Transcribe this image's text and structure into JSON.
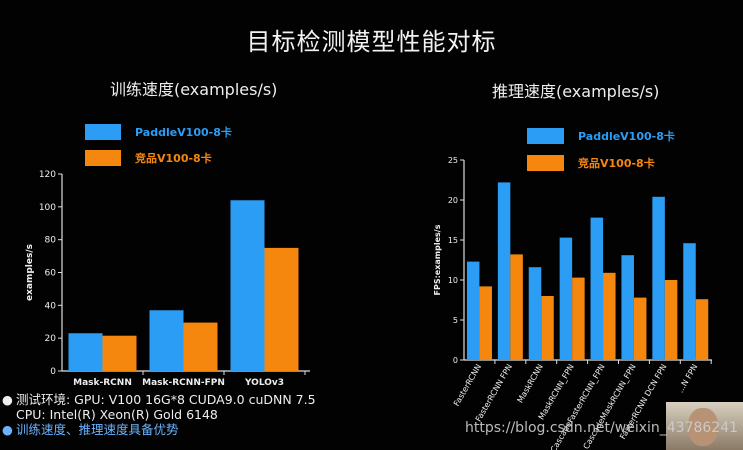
{
  "page_title": "目标检测模型性能对标",
  "chart_data": [
    {
      "type": "bar",
      "title": "训练速度(examples/s)",
      "ylabel": "examples/s",
      "xlabel": "",
      "ylim": [
        0,
        120
      ],
      "yticks": [
        0,
        20,
        40,
        60,
        80,
        100,
        120
      ],
      "categories": [
        "Mask-RCNN",
        "Mask-RCNN-FPN",
        "YOLOv3"
      ],
      "series": [
        {
          "name": "PaddleV100-8卡",
          "color": "#2b9df4",
          "values": [
            23,
            37,
            104
          ]
        },
        {
          "name": "竞品V100-8卡",
          "color": "#f5870f",
          "values": [
            21.5,
            29.5,
            75
          ]
        }
      ],
      "legend": "top-left"
    },
    {
      "type": "bar",
      "title": "推理速度(examples/s)",
      "ylabel": "FPS:examples/s",
      "xlabel": "",
      "ylim": [
        0,
        25
      ],
      "yticks": [
        0,
        5,
        10,
        15,
        20,
        25
      ],
      "categories": [
        "FasterRCNN",
        "FasterRCNN FPN",
        "MaskRCNN",
        "MaskRCNN_FPN",
        "CascadeFasterRCNN_FPN",
        "CascadeMaskRCNN_FPN",
        "FasterRCNN DCN FPN",
        "...N FPN"
      ],
      "series": [
        {
          "name": "PaddleV100-8卡",
          "color": "#2b9df4",
          "values": [
            12.3,
            22.2,
            11.6,
            15.3,
            17.8,
            13.1,
            20.4,
            14.6
          ]
        },
        {
          "name": "竞品V100-8卡",
          "color": "#f5870f",
          "values": [
            9.2,
            13.2,
            8.0,
            10.3,
            10.9,
            7.8,
            10.0,
            7.6
          ]
        }
      ],
      "legend": "top-left"
    }
  ],
  "bullets": [
    "测试环境: GPU: V100 16G*8 CUDA9.0 cuDNN 7.5  CPU: Intel(R) Xeon(R) Gold 6148",
    "训练速度、推理速度具备优势"
  ],
  "watermark": "https://blog.csdn.net/weixin_43786241"
}
